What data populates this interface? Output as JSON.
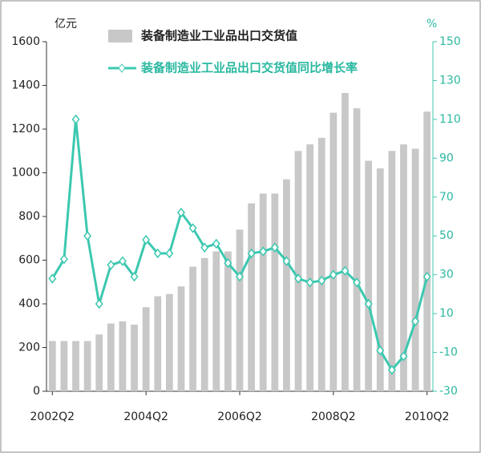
{
  "chart_data": {
    "type": "bar-line",
    "ylabel": "亿元",
    "y2label": "%",
    "categories": [
      "2002Q2",
      null,
      null,
      null,
      null,
      null,
      null,
      null,
      "2004Q2",
      null,
      null,
      null,
      null,
      null,
      null,
      null,
      "2006Q2",
      null,
      null,
      null,
      null,
      null,
      null,
      null,
      "2008Q2",
      null,
      null,
      null,
      null,
      null,
      null,
      null,
      "2010Q2"
    ],
    "series": [
      {
        "name": "装备制造业工业品出口交货值",
        "type": "bar",
        "color": "#c8c8c8",
        "values": [
          230,
          230,
          230,
          230,
          260,
          310,
          320,
          305,
          385,
          435,
          445,
          480,
          570,
          610,
          640,
          640,
          740,
          860,
          905,
          905,
          970,
          1100,
          1130,
          1160,
          1275,
          1365,
          1295,
          1055,
          1020,
          1100,
          1130,
          1110,
          1280
        ]
      },
      {
        "name": "装备制造业工业品出口交货值同比增长率",
        "type": "line",
        "axis": "y2",
        "color": "#3cc8b0",
        "values": [
          28,
          38,
          110,
          50,
          15,
          35,
          37,
          29,
          48,
          41,
          41,
          62,
          54,
          44,
          46,
          36,
          29,
          41,
          42,
          44,
          37,
          28,
          26,
          27,
          30,
          32,
          26,
          15,
          -9,
          -19,
          -12,
          6,
          29
        ]
      }
    ],
    "ylim": [
      0,
      1600
    ],
    "yticks": [
      0,
      200,
      400,
      600,
      800,
      1000,
      1200,
      1400,
      1600
    ],
    "y2lim": [
      -30,
      150
    ],
    "y2ticks": [
      -30,
      -10,
      10,
      30,
      50,
      70,
      90,
      110,
      130,
      150
    ]
  }
}
